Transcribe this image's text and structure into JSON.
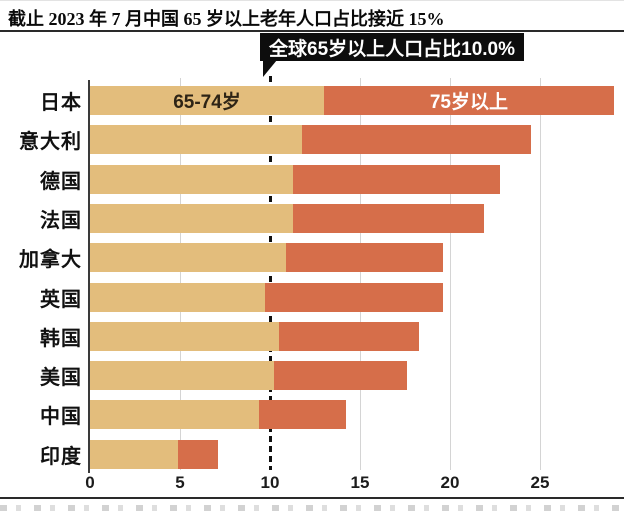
{
  "title": "截止 2023 年 7 月中国 65 岁以上老年人口占比接近 15%",
  "annotation": {
    "text": "全球65岁以上人口占比10.0%",
    "value": 10.0
  },
  "colors": {
    "series1": "#E3BD7C",
    "series2": "#D66E4A",
    "annotation_bg": "#0d0d0d",
    "annotation_text": "#ffffff",
    "axis": "#3a3a3a",
    "gridline": "#d4d4d4"
  },
  "chart_data": {
    "type": "bar",
    "orientation": "horizontal",
    "stacked": true,
    "title": "截止 2023 年 7 月中国 65 岁以上老年人口占比接近 15%",
    "categories": [
      "日本",
      "意大利",
      "德国",
      "法国",
      "加拿大",
      "英国",
      "韩国",
      "美国",
      "中国",
      "印度"
    ],
    "series": [
      {
        "name": "65-74岁",
        "color": "#E3BD7C",
        "values": [
          13.0,
          11.8,
          11.3,
          11.3,
          10.9,
          9.7,
          10.5,
          10.2,
          9.4,
          4.9
        ]
      },
      {
        "name": "75岁以上",
        "color": "#D66E4A",
        "values": [
          16.1,
          12.7,
          11.5,
          10.6,
          8.7,
          9.9,
          7.8,
          7.4,
          4.8,
          2.2
        ]
      }
    ],
    "totals": [
      29.1,
      24.5,
      22.8,
      21.9,
      19.6,
      19.6,
      18.3,
      17.6,
      14.2,
      7.1
    ],
    "x_ticks": [
      0,
      5,
      10,
      15,
      20,
      25
    ],
    "xlim": [
      0,
      29.7
    ],
    "reference_line": {
      "x": 10.0,
      "style": "dashed",
      "label": "全球65岁以上人口占比10.0%"
    },
    "grid": "vertical",
    "legend_position": "inside-first-bar",
    "xlabel": "",
    "ylabel": ""
  }
}
